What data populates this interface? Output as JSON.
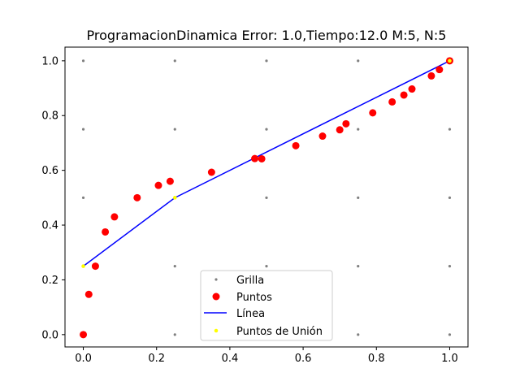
{
  "chart_data": {
    "type": "scatter",
    "title": "ProgramacionDinamica Error: 1.0,Tiempo:12.0  M:5, N:5",
    "xlim": [
      -0.05,
      1.05
    ],
    "ylim": [
      -0.045,
      1.05
    ],
    "x_ticks": [
      0.0,
      0.2,
      0.4,
      0.6,
      0.8,
      1.0
    ],
    "y_ticks": [
      0.0,
      0.2,
      0.4,
      0.6,
      0.8,
      1.0
    ],
    "x_tick_labels": [
      "0.0",
      "0.2",
      "0.4",
      "0.6",
      "0.8",
      "1.0"
    ],
    "y_tick_labels": [
      "0.0",
      "0.2",
      "0.4",
      "0.6",
      "0.8",
      "1.0"
    ],
    "xlabel": "",
    "ylabel": "",
    "legend_position": "bottom-center",
    "grid_points": {
      "name": "Grilla",
      "color": "#808080",
      "x_values": [
        0.0,
        0.25,
        0.5,
        0.75,
        1.0
      ],
      "y_values": [
        0.0,
        0.25,
        0.5,
        0.75,
        1.0
      ]
    },
    "points": {
      "name": "Puntos",
      "color": "#ff0000",
      "x": [
        0.0,
        0.015,
        0.033,
        0.06,
        0.085,
        0.147,
        0.205,
        0.237,
        0.35,
        0.468,
        0.487,
        0.58,
        0.653,
        0.7,
        0.717,
        0.79,
        0.843,
        0.875,
        0.897,
        0.95,
        0.972,
        1.0
      ],
      "y": [
        0.0,
        0.147,
        0.25,
        0.375,
        0.43,
        0.5,
        0.545,
        0.56,
        0.593,
        0.643,
        0.642,
        0.69,
        0.725,
        0.748,
        0.77,
        0.81,
        0.85,
        0.875,
        0.897,
        0.945,
        0.968,
        1.0
      ]
    },
    "line": {
      "name": "Línea",
      "color": "#0000ff",
      "x": [
        0.0,
        0.25,
        1.0
      ],
      "y": [
        0.25,
        0.5,
        1.0
      ]
    },
    "union_points": {
      "name": "Puntos de Unión",
      "color": "#ffff00",
      "x": [
        0.0,
        0.25,
        1.0
      ],
      "y": [
        0.25,
        0.5,
        1.0
      ]
    }
  }
}
